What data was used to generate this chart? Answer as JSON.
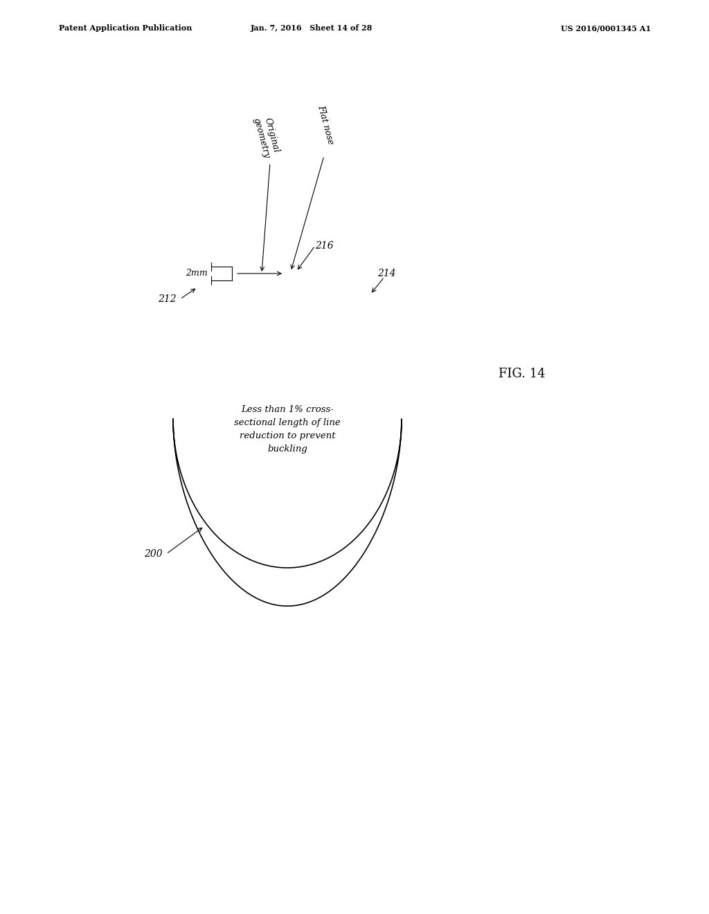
{
  "bg_color": "#ffffff",
  "header_left": "Patent Application Publication",
  "header_center": "Jan. 7, 2016   Sheet 14 of 28",
  "header_right": "US 2016/0001345 A1",
  "fig_label": "FIG. 14",
  "label_200": "200",
  "label_212": "212",
  "label_214": "214",
  "label_216": "216",
  "label_2mm": "2mm",
  "label_orig": "Original\ngeometry",
  "label_flat": "Flat nose",
  "label_inner": "Less than 1% cross-\nsectional length of line\nreduction to prevent\nbuckling",
  "line_color": "#000000",
  "text_color": "#000000"
}
